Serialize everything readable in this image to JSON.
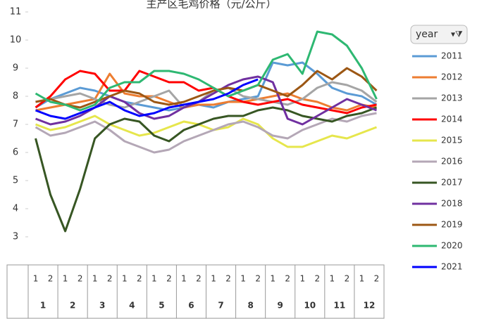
{
  "chart_data": {
    "type": "line",
    "title": "主产区毛鸡价格（元/公斤）",
    "legend_title": "year",
    "categories": [
      "1",
      "2",
      "1",
      "2",
      "1",
      "2",
      "1",
      "2",
      "1",
      "2",
      "1",
      "2",
      "1",
      "2",
      "1",
      "2",
      "1",
      "2",
      "1",
      "2",
      "1",
      "2",
      "1",
      "2"
    ],
    "months": [
      "1",
      "2",
      "3",
      "4",
      "5",
      "6",
      "7",
      "8",
      "9",
      "10",
      "11",
      "12"
    ],
    "ylim": [
      2,
      11
    ],
    "yticks": [
      3,
      4,
      5,
      6,
      7,
      8,
      9,
      10,
      11
    ],
    "grid": false,
    "legend": "right",
    "series": [
      {
        "name": "2011",
        "color": "#5b9bd5",
        "values": [
          7.6,
          7.9,
          8.1,
          8.3,
          8.2,
          8.0,
          7.8,
          7.7,
          7.6,
          7.5,
          7.6,
          7.7,
          7.6,
          7.8,
          7.9,
          8.0,
          9.2,
          9.1,
          9.2,
          8.8,
          8.3,
          8.1,
          8.0,
          7.7
        ]
      },
      {
        "name": "2012",
        "color": "#ed7d31",
        "values": [
          7.5,
          7.6,
          7.7,
          7.8,
          7.9,
          8.8,
          8.1,
          8.0,
          8.0,
          7.8,
          7.6,
          7.7,
          7.7,
          7.8,
          7.8,
          7.9,
          8.0,
          8.1,
          7.9,
          7.8,
          7.6,
          7.5,
          7.7,
          7.6
        ]
      },
      {
        "name": "2013",
        "color": "#a5a5a5",
        "values": [
          7.8,
          7.9,
          8.0,
          8.1,
          7.9,
          7.7,
          7.6,
          7.8,
          8.0,
          8.2,
          7.6,
          7.8,
          8.2,
          8.3,
          8.0,
          7.9,
          7.8,
          7.7,
          7.9,
          8.3,
          8.5,
          8.4,
          8.2,
          7.8
        ]
      },
      {
        "name": "2014",
        "color": "#ff0000",
        "values": [
          7.6,
          8.0,
          8.6,
          8.9,
          8.8,
          8.2,
          8.2,
          8.9,
          8.7,
          8.5,
          8.5,
          8.2,
          8.3,
          8.0,
          7.8,
          7.7,
          7.8,
          7.9,
          7.7,
          7.6,
          7.5,
          7.4,
          7.6,
          7.7
        ]
      },
      {
        "name": "2015",
        "color": "#e6e64c",
        "values": [
          7.0,
          6.8,
          6.9,
          7.1,
          7.3,
          7.0,
          6.8,
          6.6,
          6.7,
          6.9,
          7.1,
          7.0,
          6.8,
          6.9,
          7.2,
          7.0,
          6.5,
          6.2,
          6.2,
          6.4,
          6.6,
          6.5,
          6.7,
          6.9
        ]
      },
      {
        "name": "2016",
        "color": "#b4a7b6",
        "values": [
          6.9,
          6.6,
          6.7,
          6.9,
          7.1,
          6.8,
          6.4,
          6.2,
          6.0,
          6.1,
          6.4,
          6.6,
          6.8,
          7.0,
          7.1,
          6.9,
          6.6,
          6.5,
          6.8,
          7.0,
          7.2,
          7.1,
          7.3,
          7.4
        ]
      },
      {
        "name": "2017",
        "color": "#375623",
        "values": [
          6.5,
          4.5,
          3.2,
          4.7,
          6.5,
          7.0,
          7.2,
          7.1,
          6.6,
          6.4,
          6.8,
          7.0,
          7.2,
          7.3,
          7.3,
          7.5,
          7.6,
          7.5,
          7.3,
          7.2,
          7.1,
          7.3,
          7.4,
          7.6
        ]
      },
      {
        "name": "2018",
        "color": "#7030a0",
        "values": [
          7.2,
          7.0,
          7.1,
          7.3,
          7.6,
          8.0,
          7.8,
          7.4,
          7.2,
          7.3,
          7.6,
          7.8,
          8.1,
          8.4,
          8.6,
          8.7,
          8.5,
          7.2,
          7.0,
          7.3,
          7.6,
          7.9,
          7.7,
          7.5
        ]
      },
      {
        "name": "2019",
        "color": "#9c5714",
        "values": [
          7.8,
          7.9,
          7.7,
          7.6,
          7.8,
          8.0,
          8.2,
          8.1,
          7.8,
          7.7,
          7.8,
          8.0,
          8.2,
          8.3,
          8.2,
          8.4,
          8.2,
          8.0,
          8.4,
          8.9,
          8.6,
          9.0,
          8.7,
          8.2
        ]
      },
      {
        "name": "2020",
        "color": "#2eb872",
        "values": [
          8.1,
          7.8,
          7.7,
          7.5,
          7.7,
          8.3,
          8.5,
          8.5,
          8.9,
          8.9,
          8.8,
          8.6,
          8.3,
          8.0,
          8.2,
          8.4,
          9.3,
          9.5,
          8.8,
          10.3,
          10.2,
          9.8,
          9.0,
          7.9
        ]
      },
      {
        "name": "2021",
        "color": "#0000ff",
        "values": [
          7.5,
          7.3,
          7.2,
          7.4,
          7.6,
          7.8,
          7.5,
          7.3,
          7.4,
          7.6,
          7.7,
          7.8,
          7.9,
          8.1,
          8.4,
          8.6,
          null,
          null,
          null,
          null,
          null,
          null,
          null,
          null
        ]
      }
    ]
  }
}
